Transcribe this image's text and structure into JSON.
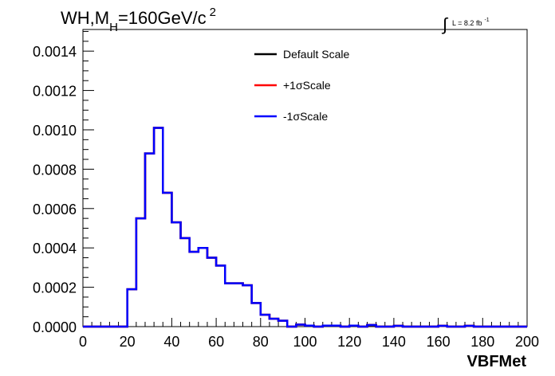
{
  "chart_data": {
    "type": "line",
    "title": {
      "main": "WH,M",
      "sub": "H",
      "rest": "=160GeV/c",
      "sup": "2"
    },
    "lumi": {
      "integral": "∫",
      "text": "L = 8.2 fb",
      "sup": "-1"
    },
    "xlabel": "VBFMet",
    "ylabel": "",
    "xlim": [
      0,
      200
    ],
    "ylim": [
      0,
      0.00151
    ],
    "x_ticks": [
      "0",
      "20",
      "40",
      "60",
      "80",
      "100",
      "120",
      "140",
      "160",
      "180",
      "200"
    ],
    "y_ticks": [
      "0.0000",
      "0.0002",
      "0.0004",
      "0.0006",
      "0.0008",
      "0.0010",
      "0.0012",
      "0.0014"
    ],
    "bin_width": 4,
    "bin_edges_start": 0,
    "series": [
      {
        "name": "Default Scale",
        "color": "#000000",
        "label_prefix": "",
        "label_symbol": "",
        "label_suffix": "Default Scale"
      },
      {
        "name": "+1σScale",
        "color": "#ff0000",
        "label_prefix": "+1",
        "label_symbol": "σ",
        "label_suffix": "Scale"
      },
      {
        "name": "-1σScale",
        "color": "#0000ff",
        "label_prefix": "-1",
        "label_symbol": "σ",
        "label_suffix": "Scale"
      }
    ],
    "values": [
      0,
      0,
      0,
      0,
      0,
      0.00019,
      0.00055,
      0.00088,
      0.00101,
      0.00068,
      0.00053,
      0.00045,
      0.00038,
      0.0004,
      0.00035,
      0.00031,
      0.00022,
      0.00022,
      0.00021,
      0.00012,
      6e-05,
      4e-05,
      3e-05,
      0.0,
      1e-05,
      5e-06,
      0.0,
      5e-06,
      5e-06,
      0.0,
      5e-06,
      0.0,
      8e-06,
      0.0,
      0.0,
      4e-06,
      0.0,
      0.0,
      0.0,
      0.0,
      4e-06,
      0.0,
      0.0,
      4e-06,
      0.0,
      0.0,
      0.0,
      0.0,
      0.0,
      0.0
    ]
  }
}
